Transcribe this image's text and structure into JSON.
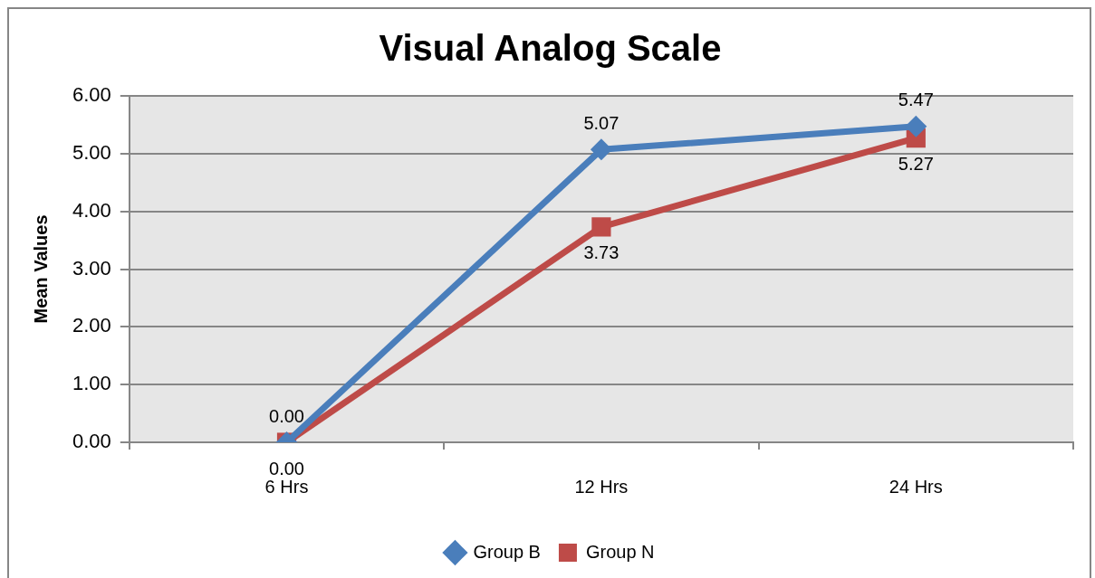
{
  "chart_data": {
    "type": "line",
    "title": "Visual Analog Scale",
    "ylabel": "Mean Values",
    "categories": [
      "6 Hrs",
      "12 Hrs",
      "24 Hrs"
    ],
    "series": [
      {
        "name": "Group B",
        "color": "#4a7ebb",
        "marker": "diamond",
        "values": [
          0,
          5.07,
          5.47
        ],
        "value_labels": [
          "0.00",
          "5.07",
          "5.47"
        ]
      },
      {
        "name": "Group N",
        "color": "#be4b48",
        "marker": "square",
        "values": [
          0,
          3.73,
          5.27
        ],
        "value_labels": [
          "0.00",
          "3.73",
          "5.27"
        ]
      }
    ],
    "ylim": [
      0,
      6
    ],
    "yticks": [
      {
        "value": 0,
        "label": "0.00"
      },
      {
        "value": 1,
        "label": "1.00"
      },
      {
        "value": 2,
        "label": "2.00"
      },
      {
        "value": 3,
        "label": "3.00"
      },
      {
        "value": 4,
        "label": "4.00"
      },
      {
        "value": 5,
        "label": "5.00"
      },
      {
        "value": 6,
        "label": "6.00"
      }
    ],
    "grid": "y",
    "legend": "bottom"
  }
}
